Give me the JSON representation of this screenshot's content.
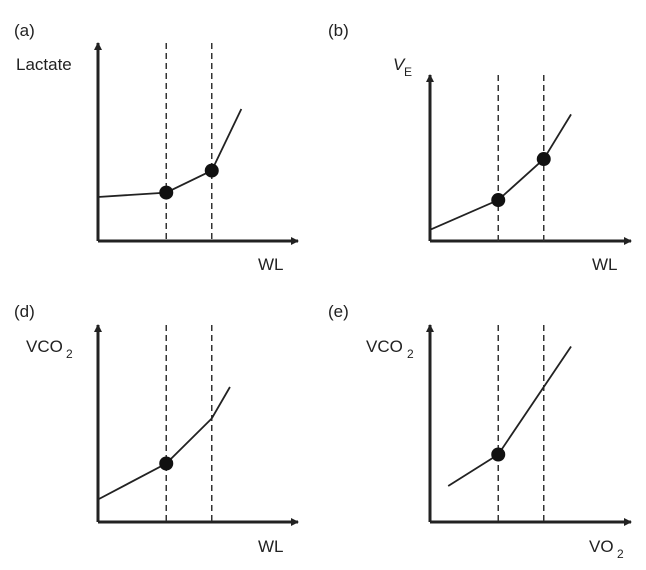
{
  "chart_data": [
    {
      "panel": "(a)",
      "type": "line",
      "ylabel": "Lactate",
      "xlabel": "WL",
      "x": [
        0,
        3,
        5,
        6.3
      ],
      "y": [
        1.0,
        1.1,
        1.6,
        3.0
      ],
      "thresholds_x": [
        3,
        5
      ],
      "markers_x": [
        3,
        5
      ],
      "xlim": [
        0,
        8
      ],
      "ylim": [
        0,
        4
      ],
      "grid": false
    },
    {
      "panel": "(b)",
      "type": "line",
      "ylabel_main": "V",
      "ylabel_sub": "E",
      "xlabel": "WL",
      "x": [
        0,
        3,
        5,
        6.2
      ],
      "y": [
        0.3,
        1.1,
        2.2,
        3.4
      ],
      "thresholds_x": [
        3,
        5
      ],
      "markers_x": [
        3,
        5
      ],
      "xlim": [
        0,
        8
      ],
      "ylim": [
        0,
        4
      ],
      "grid": false
    },
    {
      "panel": "(d)",
      "type": "line",
      "ylabel_main": "VCO",
      "ylabel_sub": "2",
      "xlabel": "WL",
      "x": [
        0,
        3,
        5,
        5.8
      ],
      "y": [
        0.5,
        1.3,
        2.3,
        3.0
      ],
      "thresholds_x": [
        3,
        5
      ],
      "markers_x": [
        3
      ],
      "xlim": [
        0,
        8
      ],
      "ylim": [
        0,
        4
      ],
      "grid": false
    },
    {
      "panel": "(e)",
      "type": "line",
      "ylabel_main": "VCO",
      "ylabel_sub": "2",
      "xlabel_main": "VO",
      "xlabel_sub": "2",
      "x": [
        0.8,
        3,
        6.2
      ],
      "y": [
        0.8,
        1.5,
        3.9
      ],
      "thresholds_x": [
        3,
        5
      ],
      "markers_x": [
        3
      ],
      "xlim": [
        0,
        8
      ],
      "ylim": [
        0,
        4
      ],
      "grid": false
    }
  ]
}
